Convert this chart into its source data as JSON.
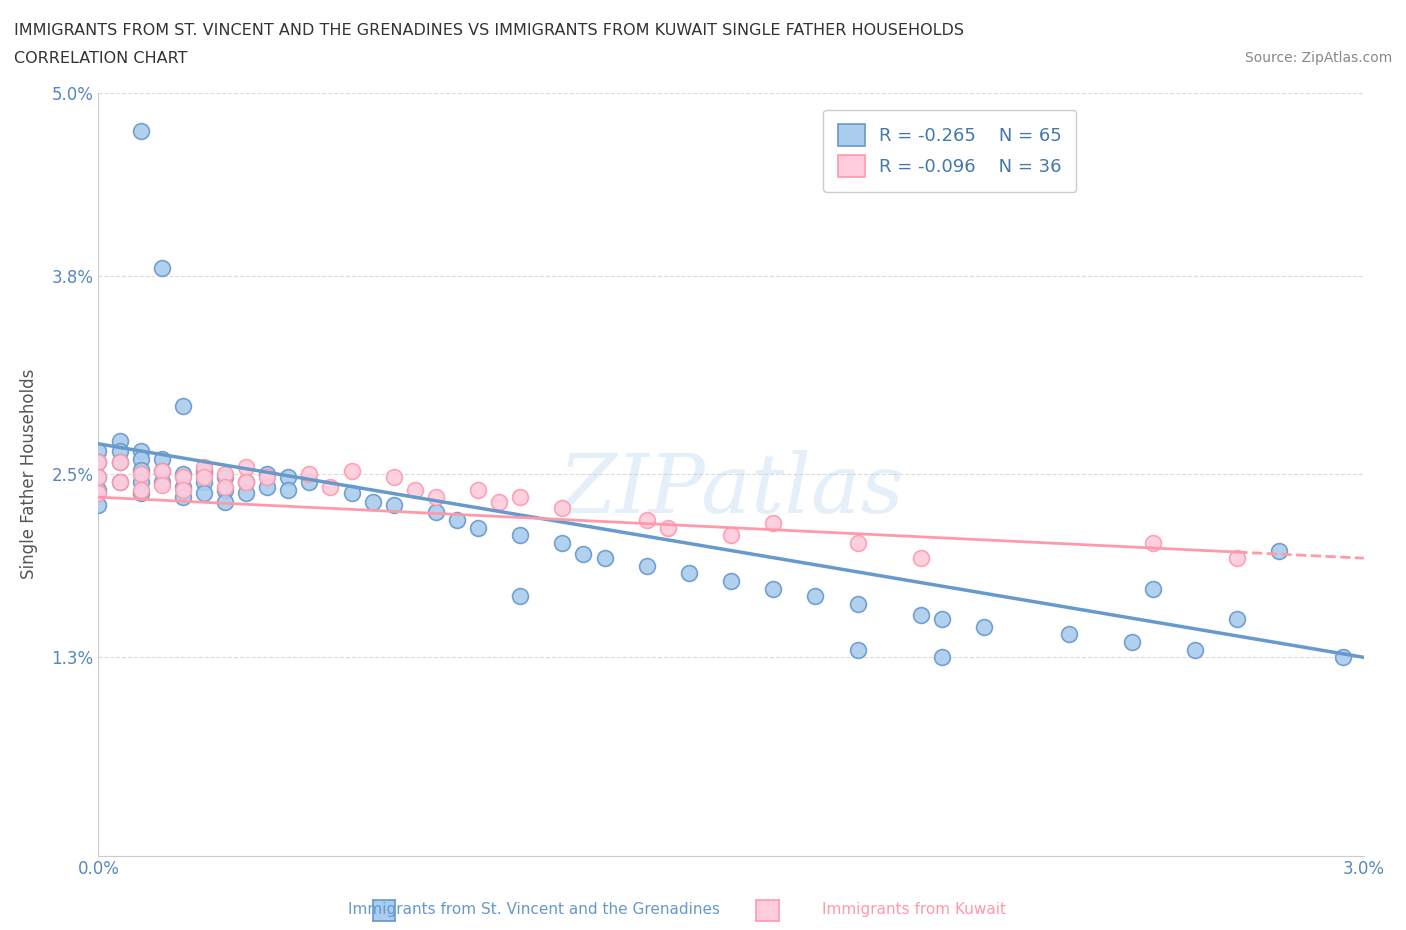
{
  "title_line1": "IMMIGRANTS FROM ST. VINCENT AND THE GRENADINES VS IMMIGRANTS FROM KUWAIT SINGLE FATHER HOUSEHOLDS",
  "title_line2": "CORRELATION CHART",
  "source": "Source: ZipAtlas.com",
  "ylabel": "Single Father Households",
  "x_min": 0.0,
  "x_max": 0.03,
  "y_min": 0.0,
  "y_max": 0.05,
  "x_tick_positions": [
    0.0,
    0.005,
    0.01,
    0.015,
    0.02,
    0.025,
    0.03
  ],
  "x_tick_labels": [
    "0.0%",
    "",
    "",
    "",
    "",
    "",
    "3.0%"
  ],
  "y_tick_positions": [
    0.0,
    0.013,
    0.025,
    0.038,
    0.05
  ],
  "y_tick_labels": [
    "",
    "1.3%",
    "2.5%",
    "3.8%",
    "5.0%"
  ],
  "legend_label1": "Immigrants from St. Vincent and the Grenadines",
  "legend_label2": "Immigrants from Kuwait",
  "r1": -0.265,
  "n1": 65,
  "r2": -0.096,
  "n2": 36,
  "color1": "#6699CC",
  "color2": "#FF99AA",
  "color1_fill": "#AACCEE",
  "color2_fill": "#FFCCDD",
  "scatter1_x": [
    0.001,
    0.0015,
    0.002,
    0.0,
    0.0,
    0.0,
    0.0,
    0.0,
    0.0005,
    0.0005,
    0.0005,
    0.0005,
    0.001,
    0.001,
    0.001,
    0.001,
    0.001,
    0.0015,
    0.0015,
    0.0015,
    0.002,
    0.002,
    0.002,
    0.0025,
    0.0025,
    0.0025,
    0.003,
    0.003,
    0.003,
    0.0035,
    0.0035,
    0.004,
    0.004,
    0.0045,
    0.0045,
    0.005,
    0.006,
    0.0065,
    0.007,
    0.008,
    0.0085,
    0.009,
    0.01,
    0.011,
    0.0115,
    0.012,
    0.013,
    0.014,
    0.015,
    0.016,
    0.017,
    0.018,
    0.0195,
    0.02,
    0.021,
    0.023,
    0.0245,
    0.026,
    0.027,
    0.028,
    0.0295,
    0.025,
    0.018,
    0.02,
    0.01
  ],
  "scatter1_y": [
    0.0475,
    0.0385,
    0.0295,
    0.0265,
    0.0258,
    0.0248,
    0.024,
    0.023,
    0.0272,
    0.0265,
    0.0258,
    0.0245,
    0.0265,
    0.026,
    0.0253,
    0.0245,
    0.0238,
    0.026,
    0.0252,
    0.0245,
    0.025,
    0.0242,
    0.0235,
    0.0252,
    0.0245,
    0.0238,
    0.0248,
    0.024,
    0.0232,
    0.0245,
    0.0238,
    0.025,
    0.0242,
    0.0248,
    0.024,
    0.0245,
    0.0238,
    0.0232,
    0.023,
    0.0225,
    0.022,
    0.0215,
    0.021,
    0.0205,
    0.0198,
    0.0195,
    0.019,
    0.0185,
    0.018,
    0.0175,
    0.017,
    0.0165,
    0.0158,
    0.0155,
    0.015,
    0.0145,
    0.014,
    0.0135,
    0.0155,
    0.02,
    0.013,
    0.0175,
    0.0135,
    0.013,
    0.017
  ],
  "scatter2_x": [
    0.0,
    0.0,
    0.0,
    0.0005,
    0.0005,
    0.001,
    0.001,
    0.0015,
    0.0015,
    0.002,
    0.002,
    0.0025,
    0.0025,
    0.003,
    0.003,
    0.0035,
    0.0035,
    0.004,
    0.005,
    0.0055,
    0.006,
    0.007,
    0.0075,
    0.008,
    0.009,
    0.0095,
    0.01,
    0.011,
    0.013,
    0.0135,
    0.015,
    0.016,
    0.018,
    0.0195,
    0.025,
    0.027
  ],
  "scatter2_y": [
    0.0258,
    0.0248,
    0.0238,
    0.0258,
    0.0245,
    0.025,
    0.024,
    0.0252,
    0.0243,
    0.0248,
    0.024,
    0.0255,
    0.0248,
    0.025,
    0.0242,
    0.0255,
    0.0245,
    0.0248,
    0.025,
    0.0242,
    0.0252,
    0.0248,
    0.024,
    0.0235,
    0.024,
    0.0232,
    0.0235,
    0.0228,
    0.022,
    0.0215,
    0.021,
    0.0218,
    0.0205,
    0.0195,
    0.0205,
    0.0195
  ],
  "line1_x0": 0.0,
  "line1_x1": 0.03,
  "line1_y0": 0.027,
  "line1_y1": 0.013,
  "line2_x0": 0.0,
  "line2_x1": 0.03,
  "line2_y0": 0.0235,
  "line2_y1": 0.0195,
  "line2_solid_end": 0.027,
  "watermark": "ZIPatlas",
  "background_color": "#FFFFFF",
  "grid_color": "#DDDDDD"
}
